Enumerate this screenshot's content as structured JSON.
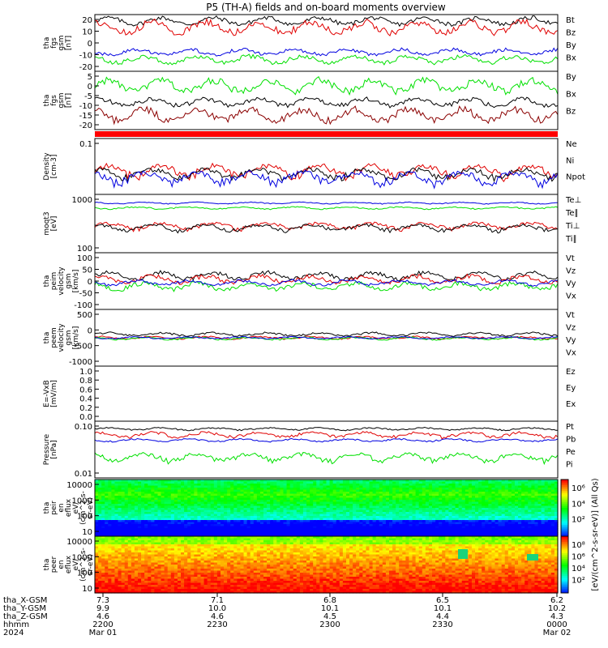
{
  "title": "P5 (TH-A) fields and on-board moments overview",
  "colors": {
    "black": "#000000",
    "red": "#e00000",
    "green": "#00e000",
    "blue": "#0000e0",
    "darkred": "#8b0000"
  },
  "chart_data": [
    {
      "type": "line",
      "panel": "fgs-gsm",
      "ylabel": [
        "tha",
        "fgs",
        "gsm",
        "[nT]"
      ],
      "yticks": [
        "20",
        "10",
        "0",
        "-10",
        "-20"
      ],
      "ylim": [
        -25,
        28
      ],
      "series": [
        {
          "name": "Bt",
          "color": "black",
          "level": 22,
          "amp": 5
        },
        {
          "name": "Bz",
          "color": "red",
          "level": 16,
          "amp": 8
        },
        {
          "name": "By",
          "color": "green",
          "level": -14,
          "amp": 5
        },
        {
          "name": "Bx",
          "color": "blue",
          "level": -7,
          "amp": 4
        }
      ]
    },
    {
      "type": "line",
      "panel": "fgs-gsm-bx",
      "ylabel": [
        "tha",
        "fgs",
        "gsm",
        "[nT]"
      ],
      "yticks": [
        "5",
        "0",
        "-5",
        "-10",
        "-15",
        "-20"
      ],
      "ylim": [
        -24,
        8
      ],
      "series": [
        {
          "name": "By",
          "color": "green",
          "level": 0,
          "amp": 5
        },
        {
          "name": "Bx",
          "color": "black",
          "level": -9,
          "amp": 3
        },
        {
          "name": "Bz",
          "color": "darkred",
          "level": -16,
          "amp": 5
        }
      ]
    },
    {
      "type": "line",
      "panel": "density",
      "ylabel": [
        "Density",
        "[cm-3]"
      ],
      "yticks": [
        "0.1"
      ],
      "log": true,
      "ylim": [
        0.07,
        2
      ],
      "series": [
        {
          "name": "Ne",
          "color": "red",
          "level": 0.3,
          "amp": 0.15
        },
        {
          "name": "Ni",
          "color": "black",
          "level": 0.25,
          "amp": 0.1
        },
        {
          "name": "Npot",
          "color": "blue",
          "level": 0.2,
          "amp": 0.1
        }
      ]
    },
    {
      "type": "line",
      "panel": "temperature",
      "ylabel": [
        "moqt3",
        "[eV]"
      ],
      "yticks": [
        "1000",
        "100"
      ],
      "log": true,
      "ylim": [
        60,
        12000
      ],
      "series": [
        {
          "name": "Te⊥",
          "color": "red",
          "level": 700,
          "amp": 300
        },
        {
          "name": "Te∥",
          "color": "black",
          "level": 600,
          "amp": 250
        },
        {
          "name": "Ti⊥",
          "color": "blue",
          "level": 5500,
          "amp": 600
        },
        {
          "name": "Ti∥",
          "color": "green",
          "level": 3500,
          "amp": 500
        }
      ]
    },
    {
      "type": "line",
      "panel": "peim-velocity",
      "ylabel": [
        "tha",
        "peim",
        "velocity",
        "gsm",
        "[km/s]"
      ],
      "yticks": [
        "100",
        "50",
        "0",
        "-50",
        "-100"
      ],
      "ylim": [
        -150,
        170
      ],
      "series": [
        {
          "name": "Vt",
          "color": "black",
          "level": 40,
          "amp": 30
        },
        {
          "name": "Vz",
          "color": "red",
          "level": 20,
          "amp": 30
        },
        {
          "name": "Vy",
          "color": "green",
          "level": -20,
          "amp": 30
        },
        {
          "name": "Vx",
          "color": "blue",
          "level": 0,
          "amp": 20
        }
      ]
    },
    {
      "type": "line",
      "panel": "peem-velocity",
      "ylabel": [
        "tha",
        "peem",
        "velocity",
        "gsm",
        "[km/s]"
      ],
      "yticks": [
        "500",
        "0",
        "-500",
        "-1000"
      ],
      "ylim": [
        -1200,
        1200
      ],
      "series": [
        {
          "name": "Vt",
          "color": "black",
          "level": 150,
          "amp": 100
        },
        {
          "name": "Vz",
          "color": "red",
          "level": 0,
          "amp": 80
        },
        {
          "name": "Vy",
          "color": "green",
          "level": -30,
          "amp": 80
        },
        {
          "name": "Vx",
          "color": "blue",
          "level": 0,
          "amp": 60
        }
      ]
    },
    {
      "type": "line",
      "panel": "efield",
      "ylabel": [
        "E=-VxB",
        "[mV/m]"
      ],
      "yticks": [
        "1.0",
        "0.8",
        "0.6",
        "0.4",
        "0.2",
        "0.0"
      ],
      "ylim": [
        0,
        1
      ],
      "series": [
        {
          "name": "Ez",
          "color": "red"
        },
        {
          "name": "Ey",
          "color": "green"
        },
        {
          "name": "Ex",
          "color": "blue"
        }
      ]
    },
    {
      "type": "line",
      "panel": "pressure",
      "ylabel": [
        "Pressure",
        "[nPa]"
      ],
      "yticks": [
        "0.10",
        "0.01"
      ],
      "log": true,
      "ylim": [
        0.003,
        0.5
      ],
      "series": [
        {
          "name": "Pt",
          "color": "black",
          "level": 0.25,
          "amp": 0.04
        },
        {
          "name": "Pb",
          "color": "red",
          "level": 0.15,
          "amp": 0.05
        },
        {
          "name": "Pe",
          "color": "green",
          "level": 0.02,
          "amp": 0.01
        },
        {
          "name": "Pi",
          "color": "blue",
          "level": 0.09,
          "amp": 0.015
        }
      ]
    },
    {
      "type": "heatmap",
      "panel": "peir-eflux",
      "ylabel": [
        "tha",
        "peir",
        "en",
        "eflux",
        "eV/",
        "(cm^2-s-",
        "sr-eV)"
      ],
      "yticks": [
        "10000",
        "1000",
        "100",
        "10"
      ],
      "log": true,
      "ylim": [
        5,
        20000
      ]
    },
    {
      "type": "heatmap",
      "panel": "peer-eflux",
      "ylabel": [
        "tha",
        "peer",
        "en",
        "eflux",
        "eV/",
        "(cm^2-s-",
        "sr-eV)"
      ],
      "yticks": [
        "10000",
        "1000",
        "100",
        "10"
      ],
      "log": true,
      "ylim": [
        5,
        20000
      ]
    }
  ],
  "colorbar": {
    "label": "[eV/(cm^2-s-sr-eV)] (All Qs)",
    "ticks": [
      "10⁶",
      "10⁴",
      "10²"
    ],
    "ticks2": [
      "10⁸",
      "10⁶",
      "10⁴",
      "10²"
    ]
  },
  "time_axis": {
    "rows": [
      {
        "label": "tha_X-GSM",
        "values": [
          "7.3",
          "7.1",
          "6.8",
          "6.5",
          "6.2"
        ]
      },
      {
        "label": "tha_Y-GSM",
        "values": [
          "9.9",
          "10.0",
          "10.1",
          "10.1",
          "10.2"
        ]
      },
      {
        "label": "tha_Z-GSM",
        "values": [
          "4.6",
          "4.6",
          "4.5",
          "4.4",
          "4.3"
        ]
      },
      {
        "label": "hhmm",
        "values": [
          "2200",
          "2230",
          "2300",
          "2330",
          "0000"
        ]
      },
      {
        "label": "2024",
        "values": [
          "Mar 01",
          "",
          "",
          "",
          "Mar 02"
        ]
      }
    ]
  }
}
